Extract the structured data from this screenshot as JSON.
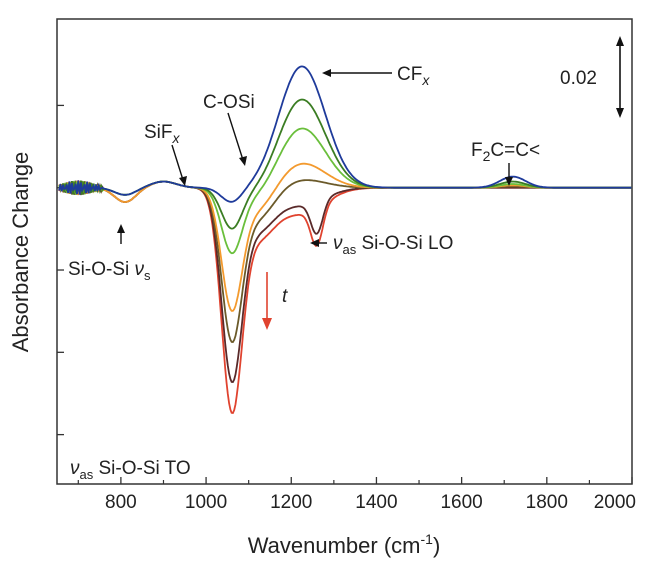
{
  "chart_data": {
    "type": "line",
    "xlabel": "Wavenumber (cm",
    "xlabel_sup": "-1",
    "xlabel_close": ")",
    "ylabel": "Absorbance Change",
    "xlim": [
      650,
      2000
    ],
    "ylim": [
      -0.072,
      0.041
    ],
    "xticks": [
      800,
      1000,
      1200,
      1400,
      1600,
      1800,
      2000
    ],
    "xtick_labels": [
      "800",
      "1000",
      "1200",
      "1400",
      "1600",
      "1800",
      "2000"
    ],
    "yticks": [
      -0.06,
      -0.04,
      -0.02,
      0.0,
      0.02
    ],
    "scale_bar": {
      "label": "0.02",
      "value": 0.02
    },
    "arrow_t_label": "t",
    "series": [
      {
        "color": "#1f3b9b",
        "peak_1230": 0.0295,
        "dip_1060": -0.0035,
        "bump_1720": 0.0009
      },
      {
        "color": "#3b7d23",
        "peak_1230": 0.0215,
        "dip_1060": -0.0095,
        "bump_1720": 0.0005
      },
      {
        "color": "#6abf3c",
        "peak_1230": 0.0145,
        "dip_1060": -0.015,
        "bump_1720": 0.0003
      },
      {
        "color": "#f39a2e",
        "peak_1230": 0.006,
        "dip_1060": -0.028,
        "bump_1720": 0.0002
      },
      {
        "color": "#6b5a2a",
        "peak_1230": 0.002,
        "dip_1060": -0.035,
        "bump_1720": 0.0001
      },
      {
        "color": "#5a2a2a",
        "peak_1230": -0.004,
        "dip_1060": -0.044,
        "bump_1720": 0.0
      },
      {
        "color": "#e0432f",
        "peak_1230": -0.006,
        "dip_1060": -0.051,
        "bump_1720": 0.0
      }
    ],
    "annotations": [
      {
        "id": "cfx",
        "text": "CF",
        "sub": "x",
        "italic_sub": true
      },
      {
        "id": "coSi",
        "text": "C-OSi"
      },
      {
        "id": "sifx",
        "text": "SiF",
        "sub": "x",
        "italic_sub": true
      },
      {
        "id": "f2c",
        "text": "F",
        "sub": "2",
        "tail": "C=C<"
      },
      {
        "id": "lo",
        "greek": "ν",
        "sub": "as",
        "text": " Si-O-Si LO"
      },
      {
        "id": "siosi_s",
        "text": "Si-O-Si ",
        "greek": "ν",
        "sub": "s"
      },
      {
        "id": "to",
        "greek": "ν",
        "sub": "as",
        "text": " Si-O-Si TO"
      }
    ]
  }
}
